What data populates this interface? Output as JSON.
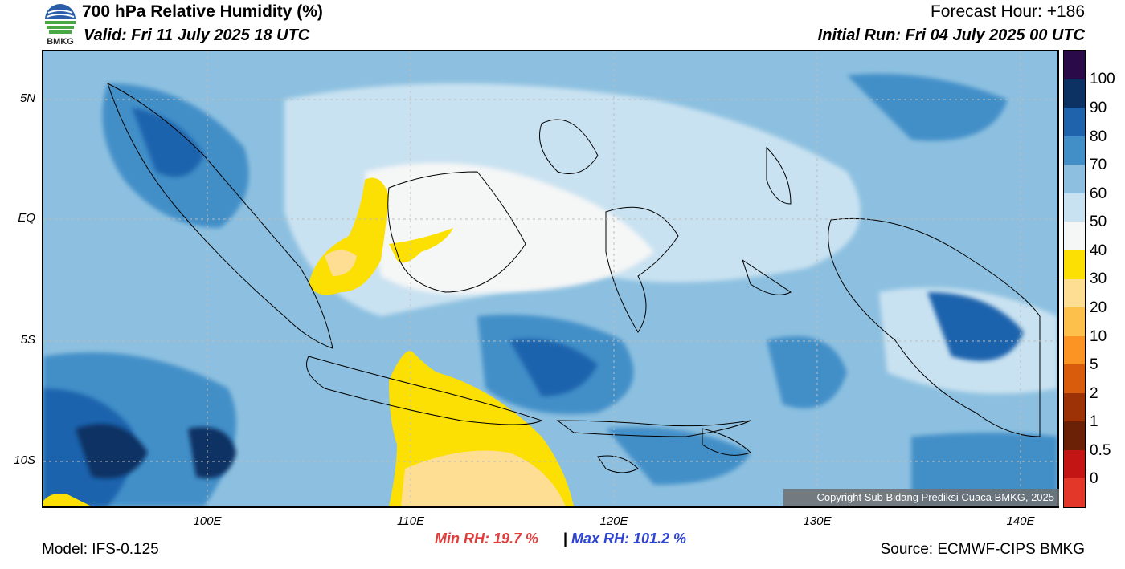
{
  "header": {
    "title": "700 hPa Relative Humidity (%)",
    "valid": "Valid: Fri 11 July 2025 18 UTC",
    "forecast_hour": "Forecast Hour: +186",
    "initial_run": "Initial Run: Fri 04 July 2025 00 UTC"
  },
  "logo": {
    "text": "BMKG"
  },
  "map": {
    "lat_labels": [
      "5N",
      "EQ",
      "5S",
      "10S"
    ],
    "lon_labels": [
      "100E",
      "110E",
      "120E",
      "130E",
      "140E"
    ],
    "copyright": "Copyright Sub Bidang Prediksi Cuaca BMKG, 2025"
  },
  "colorbar": {
    "labels": [
      "100",
      "90",
      "80",
      "70",
      "60",
      "50",
      "40",
      "30",
      "20",
      "10",
      "5",
      "2",
      "1",
      "0.5",
      "0"
    ],
    "colors": [
      "#2b0a4a",
      "#0b3263",
      "#1f63ad",
      "#428fc8",
      "#8dc0e0",
      "#c9e2f1",
      "#f5f6f6",
      "#fce003",
      "#fdde93",
      "#fdc04a",
      "#fc9424",
      "#d95c0c",
      "#9e3207",
      "#6b2106",
      "#c31513",
      "#e3372a"
    ]
  },
  "stats": {
    "min_rh": "Min RH:  19.7 %",
    "sep": "|",
    "max_rh": "Max RH: 101.2 %",
    "min_color": "#e23c3c",
    "max_color": "#2f45d4"
  },
  "footer": {
    "model": "Model: IFS-0.125",
    "source": "Source: ECMWF-CIPS BMKG"
  }
}
